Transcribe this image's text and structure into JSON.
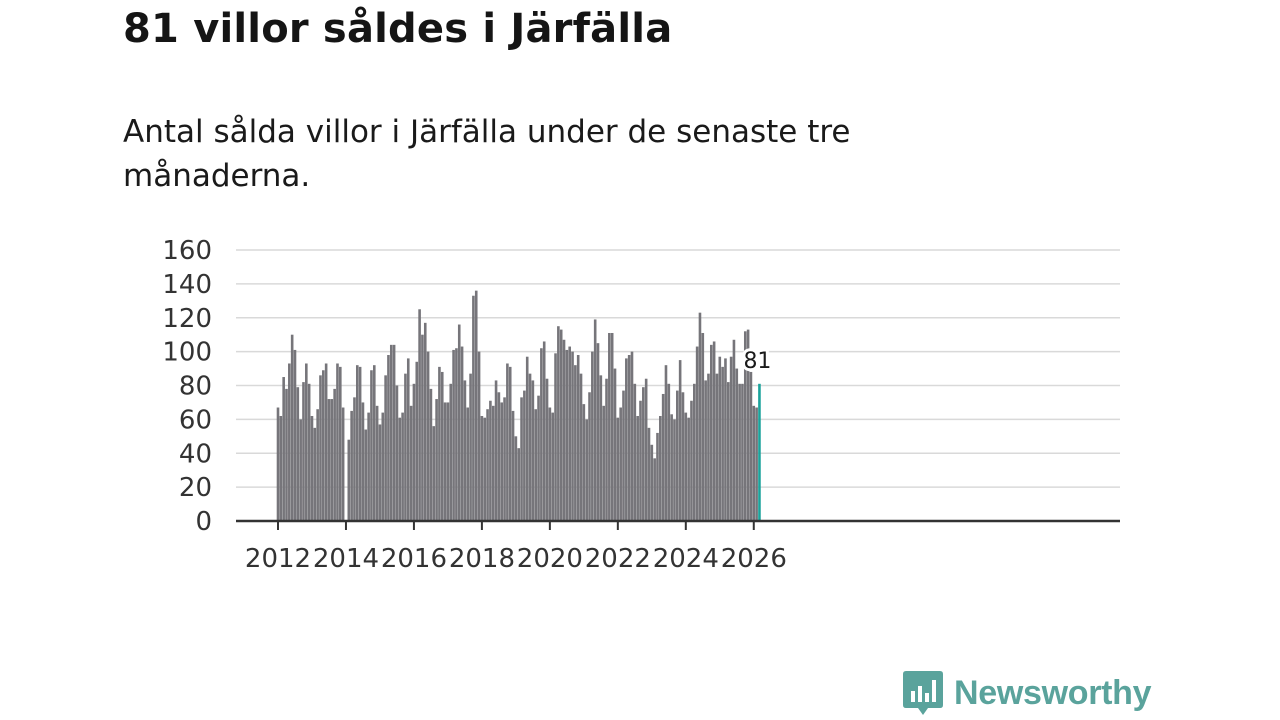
{
  "header": {
    "title": "81 villor såldes i Järfälla",
    "subtitle": "Antal sålda villor i Järfälla under de senaste tre månaderna."
  },
  "brand": {
    "name": "Newsworthy",
    "color": "#5aa39c"
  },
  "chart_data": {
    "type": "bar",
    "title": "81 villor såldes i Järfälla",
    "subtitle": "Antal sålda villor i Järfälla under de senaste tre månaderna.",
    "xlabel": "",
    "ylabel": "",
    "ylim": [
      0,
      160
    ],
    "yticks": [
      0,
      20,
      40,
      60,
      80,
      100,
      120,
      140,
      160
    ],
    "xticks": [
      "2012",
      "2014",
      "2016",
      "2018",
      "2020",
      "2022",
      "2024",
      "2026"
    ],
    "x_start": "2012-01",
    "x_end": "2026-03",
    "grid": true,
    "colors": {
      "bar": "#76757a",
      "highlight": "#1aa39b",
      "grid": "#d9d9d9",
      "axis": "#333333"
    },
    "highlight_label": "81",
    "values": [
      67,
      62,
      85,
      78,
      93,
      110,
      101,
      79,
      60,
      82,
      93,
      81,
      62,
      55,
      66,
      86,
      89,
      93,
      72,
      72,
      78,
      93,
      91,
      67,
      null,
      48,
      65,
      73,
      92,
      91,
      70,
      54,
      64,
      89,
      92,
      68,
      57,
      64,
      86,
      98,
      104,
      104,
      80,
      61,
      64,
      87,
      96,
      68,
      81,
      94,
      125,
      110,
      117,
      100,
      78,
      56,
      72,
      91,
      88,
      70,
      70,
      81,
      101,
      102,
      116,
      103,
      83,
      67,
      87,
      133,
      136,
      100,
      62,
      61,
      66,
      71,
      68,
      83,
      76,
      70,
      73,
      93,
      91,
      65,
      50,
      43,
      73,
      77,
      97,
      87,
      83,
      66,
      74,
      102,
      106,
      84,
      67,
      64,
      99,
      115,
      113,
      107,
      101,
      103,
      100,
      92,
      98,
      87,
      69,
      60,
      76,
      100,
      119,
      105,
      86,
      68,
      84,
      111,
      111,
      90,
      61,
      67,
      77,
      96,
      98,
      100,
      81,
      62,
      71,
      79,
      84,
      55,
      45,
      37,
      52,
      62,
      75,
      92,
      81,
      63,
      60,
      77,
      95,
      76,
      64,
      61,
      71,
      81,
      103,
      123,
      111,
      83,
      87,
      104,
      106,
      87,
      97,
      91,
      96,
      82,
      97,
      107,
      90,
      81,
      81,
      112,
      113,
      88,
      68,
      67,
      81
    ]
  }
}
